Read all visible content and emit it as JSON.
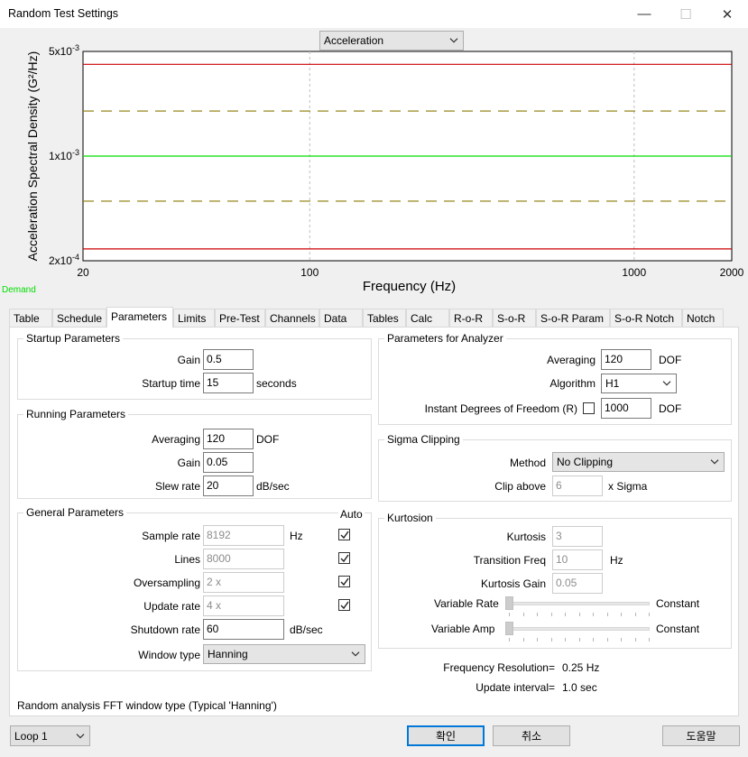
{
  "window": {
    "title": "Random Test Settings",
    "minimize_glyph": "—",
    "maximize_glyph": "☐",
    "close_glyph": "✕"
  },
  "chart_selector": {
    "value": "Acceleration"
  },
  "chart_data": {
    "type": "line",
    "xlabel": "Frequency (Hz)",
    "ylabel": "Acceleration Spectral Density (G²/Hz)",
    "x_scale": "log",
    "y_scale": "log",
    "xlim": [
      20,
      2000
    ],
    "ylim": [
      0.0002,
      0.005
    ],
    "x_ticks": [
      20,
      100,
      1000,
      2000
    ],
    "x_tick_labels": [
      "20",
      "100",
      "1000",
      "2000"
    ],
    "y_ticks": [
      0.0002,
      0.001,
      0.005
    ],
    "y_tick_labels": [
      {
        "mant": "2x10",
        "exp": "-4"
      },
      {
        "mant": "1x10",
        "exp": "-3"
      },
      {
        "mant": "5x10",
        "exp": "-3"
      }
    ],
    "grid": "vertical dashed at 100 and 1000",
    "series": [
      {
        "name": "Demand",
        "style": "solid",
        "color": "#00dd00",
        "x": [
          20,
          2000
        ],
        "values": [
          0.001,
          0.001
        ]
      },
      {
        "style": "dashed",
        "color": "#8a7a00",
        "x": [
          20,
          2000
        ],
        "values": [
          0.002,
          0.002
        ]
      },
      {
        "style": "dashed",
        "color": "#8a7a00",
        "x": [
          20,
          2000
        ],
        "values": [
          0.0005,
          0.0005
        ]
      },
      {
        "style": "solid",
        "color": "#cc0000",
        "x": [
          20,
          2000
        ],
        "values": [
          0.0041,
          0.0041
        ]
      },
      {
        "style": "solid",
        "color": "#cc0000",
        "x": [
          20,
          2000
        ],
        "values": [
          0.00024,
          0.00024
        ]
      }
    ]
  },
  "tabs": [
    {
      "label": "Table"
    },
    {
      "label": "Schedule"
    },
    {
      "label": "Parameters"
    },
    {
      "label": "Limits"
    },
    {
      "label": "Pre-Test"
    },
    {
      "label": "Channels"
    },
    {
      "label": "Data"
    },
    {
      "label": "Tables"
    },
    {
      "label": "Calc"
    },
    {
      "label": "R-o-R"
    },
    {
      "label": "S-o-R"
    },
    {
      "label": "S-o-R Param"
    },
    {
      "label": "S-o-R Notch"
    },
    {
      "label": "Notch"
    }
  ],
  "active_tab": "Parameters",
  "startup": {
    "title": "Startup Parameters",
    "gain_label": "Gain",
    "gain_value": "0.5",
    "time_label": "Startup time",
    "time_value": "15",
    "time_unit": "seconds"
  },
  "running": {
    "title": "Running Parameters",
    "averaging_label": "Averaging",
    "averaging_value": "120",
    "averaging_unit": "DOF",
    "gain_label": "Gain",
    "gain_value": "0.05",
    "slew_label": "Slew rate",
    "slew_value": "20",
    "slew_unit": "dB/sec"
  },
  "general": {
    "title": "General Parameters",
    "auto_label": "Auto",
    "sample_label": "Sample rate",
    "sample_value": "8192",
    "sample_unit": "Hz",
    "sample_auto": true,
    "lines_label": "Lines",
    "lines_value": "8000",
    "lines_auto": true,
    "oversampling_label": "Oversampling",
    "oversampling_value": "2 x",
    "oversampling_auto": true,
    "update_label": "Update rate",
    "update_value": "4 x",
    "update_auto": true,
    "shutdown_label": "Shutdown rate",
    "shutdown_value": "60",
    "shutdown_unit": "dB/sec",
    "window_label": "Window type",
    "window_value": "Hanning"
  },
  "analyzer": {
    "title": "Parameters for Analyzer",
    "averaging_label": "Averaging",
    "averaging_value": "120",
    "averaging_unit": "DOF",
    "algorithm_label": "Algorithm",
    "algorithm_value": "H1",
    "instant_label": "Instant Degrees of Freedom  (R)",
    "instant_checked": false,
    "instant_value": "1000",
    "instant_unit": "DOF"
  },
  "sigma": {
    "title": "Sigma Clipping",
    "method_label": "Method",
    "method_value": "No Clipping",
    "clip_label": "Clip above",
    "clip_value": "6",
    "clip_unit": "x Sigma"
  },
  "kurtosis": {
    "title": "Kurtosion",
    "kurtosis_label": "Kurtosis",
    "kurtosis_value": "3",
    "transition_label": "Transition Freq",
    "transition_value": "10",
    "transition_unit": "Hz",
    "gain_label": "Kurtosis Gain",
    "gain_value": "0.05",
    "var_rate_label": "Variable Rate",
    "var_rate_value": "Constant",
    "var_rate_level": 0,
    "var_amp_label": "Variable Amp",
    "var_amp_value": "Constant",
    "var_amp_level": 0
  },
  "info": {
    "freq_res_label": "Frequency Resolution=",
    "freq_res_value": "0.25 Hz",
    "update_int_label": "Update interval=",
    "update_int_value": "1.0 sec"
  },
  "status_hint": "Random analysis FFT window type (Typical 'Hanning')",
  "footer": {
    "loop_value": "Loop 1",
    "ok_label": "확인",
    "cancel_label": "취소",
    "help_label": "도움말"
  }
}
